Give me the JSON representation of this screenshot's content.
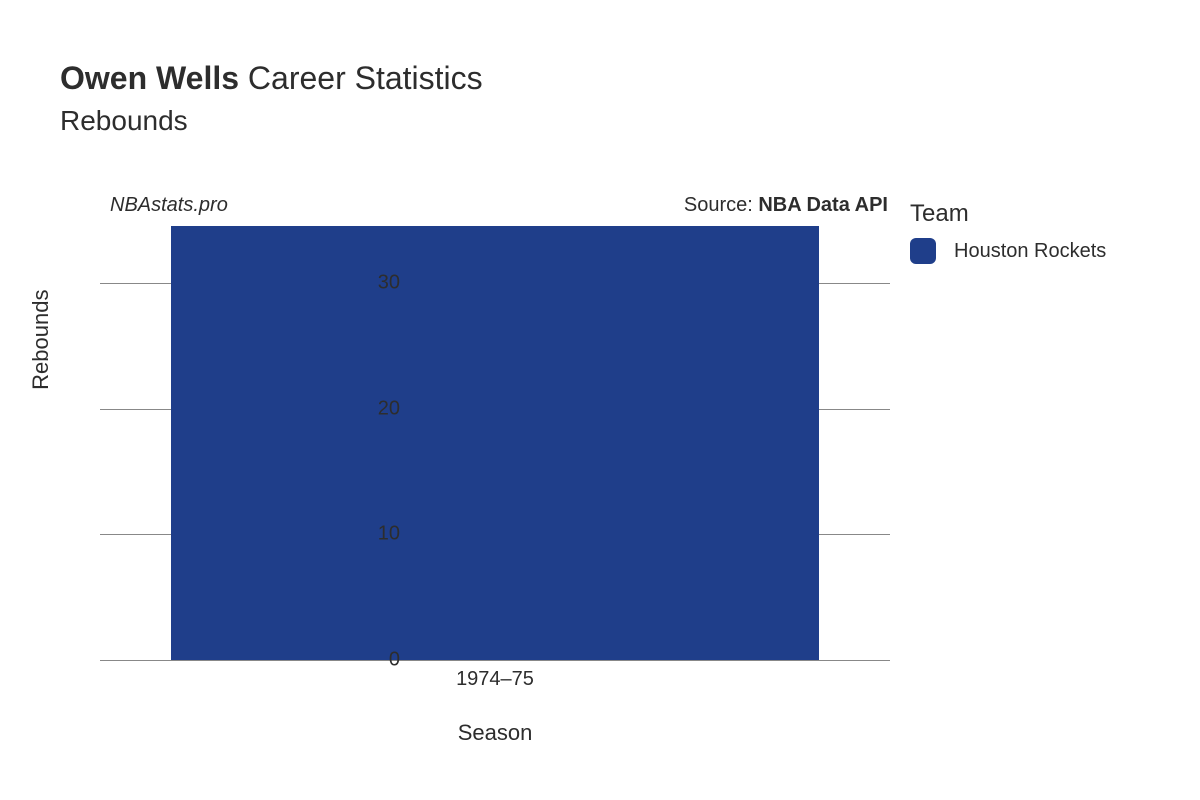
{
  "title": {
    "player_name": "Owen Wells",
    "rest": " Career Statistics",
    "subtitle": "Rebounds",
    "title_fontsize": 32,
    "subtitle_fontsize": 28,
    "color": "#2d2d2d"
  },
  "attribution": {
    "site": "NBAstats.pro",
    "source_prefix": "Source: ",
    "source_name": "NBA Data API",
    "fontsize": 20
  },
  "chart": {
    "type": "bar",
    "xlabel": "Season",
    "ylabel": "Rebounds",
    "label_fontsize": 22,
    "tick_fontsize": 20,
    "ylim": [
      0,
      35
    ],
    "yticks": [
      0,
      10,
      20,
      30
    ],
    "categories": [
      "1974–75"
    ],
    "values": [
      34.5
    ],
    "bar_colors": [
      "#1f3e8a"
    ],
    "bar_width": 0.82,
    "background_color": "#ffffff",
    "grid_color": "#888888",
    "text_color": "#2d2d2d"
  },
  "legend": {
    "title": "Team",
    "title_fontsize": 24,
    "item_fontsize": 20,
    "items": [
      {
        "label": "Houston Rockets",
        "color": "#1f3e8a"
      }
    ]
  }
}
